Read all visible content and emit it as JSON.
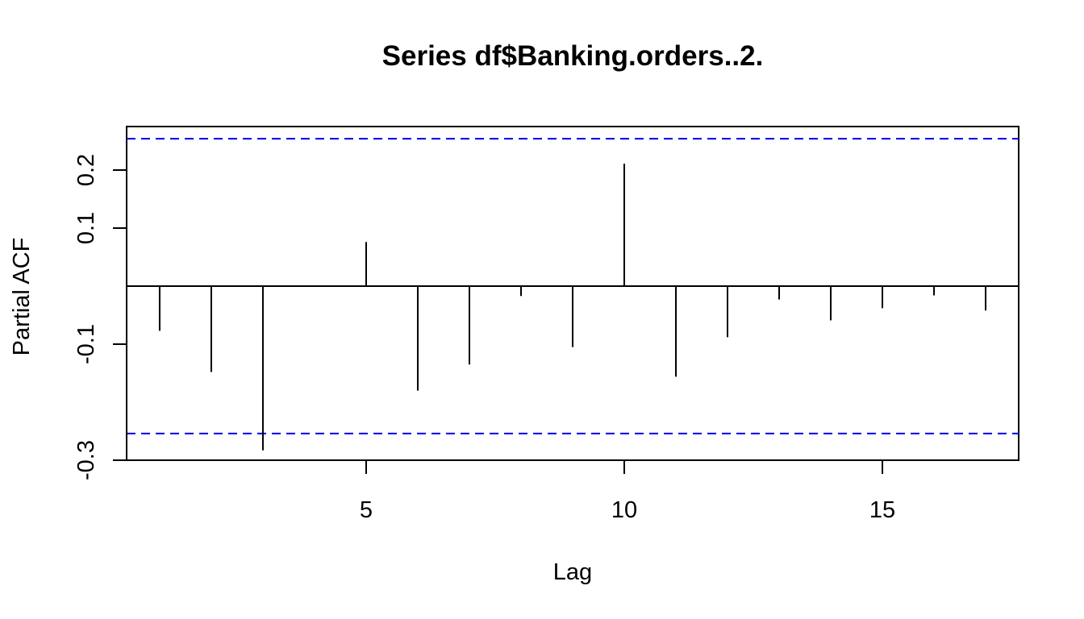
{
  "chart_data": {
    "type": "bar",
    "title": "Series  df$Banking.orders..2.",
    "xlabel": "Lag",
    "ylabel": "Partial ACF",
    "x": [
      1,
      2,
      3,
      4,
      5,
      6,
      7,
      8,
      9,
      10,
      11,
      12,
      13,
      14,
      15,
      16,
      17
    ],
    "values": [
      -0.077,
      -0.148,
      -0.283,
      -0.001,
      0.076,
      -0.18,
      -0.135,
      -0.017,
      -0.105,
      0.211,
      -0.156,
      -0.088,
      -0.023,
      -0.059,
      -0.038,
      -0.016,
      -0.042
    ],
    "confidence_bounds": [
      0.254,
      -0.254
    ],
    "xlim": [
      0.36,
      17.64
    ],
    "ylim": [
      -0.3,
      0.275
    ],
    "x_ticks": [
      "5",
      "10",
      "15"
    ],
    "y_ticks": [
      "-0.3",
      "-0.1",
      "0.1",
      "0.2"
    ],
    "bound_line_color": "#0000ee",
    "grid": false
  }
}
